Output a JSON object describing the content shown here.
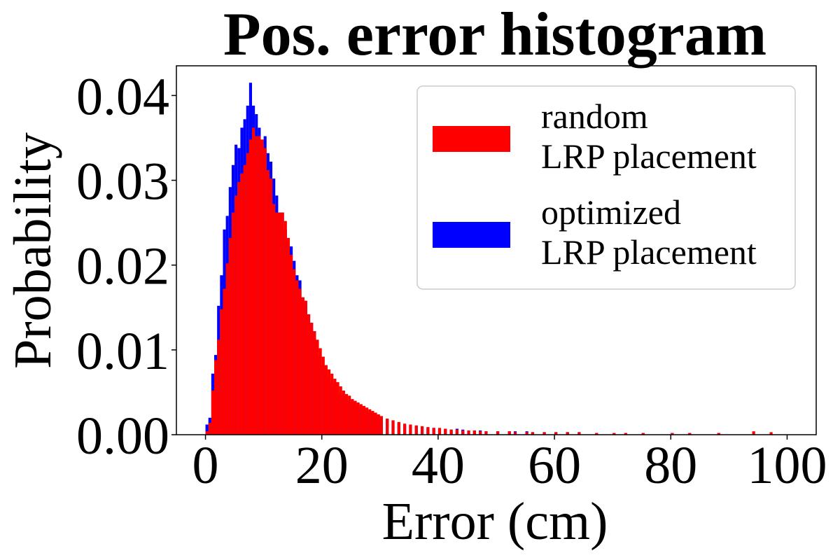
{
  "chart_data": {
    "type": "bar",
    "title": "Pos. error histogram",
    "xlabel": "Error (cm)",
    "ylabel": "Probability",
    "xlim": [
      -5,
      105
    ],
    "ylim": [
      0,
      0.0435
    ],
    "x_ticks": [
      0,
      20,
      40,
      60,
      80,
      100
    ],
    "x_tick_labels": [
      "0",
      "20",
      "40",
      "60",
      "80",
      "100"
    ],
    "y_ticks": [
      0,
      0.01,
      0.02,
      0.03,
      0.04
    ],
    "y_tick_labels": [
      "0.00",
      "0.01",
      "0.02",
      "0.03",
      "0.04"
    ],
    "bin_width": 0.5,
    "grid": false,
    "legend_position": "upper right",
    "series": [
      {
        "name": "optimized\nLRP placement",
        "color": "#0000ff",
        "x": [
          0.0,
          0.5,
          1.0,
          1.5,
          2.0,
          2.5,
          3.0,
          3.5,
          4.0,
          4.5,
          5.0,
          5.5,
          6.0,
          6.5,
          7.0,
          7.5,
          8.0,
          8.5,
          9.0,
          9.5,
          10.0,
          10.5,
          11.0,
          11.5,
          12.0,
          12.5,
          13.0,
          13.5,
          14.0,
          14.5,
          15.0,
          15.5,
          16.0,
          16.5,
          17.0,
          17.5,
          18.0,
          18.5,
          19.0,
          19.5,
          20.0,
          20.5,
          21.0,
          21.5,
          22.0,
          22.5,
          23.0,
          23.5,
          24.0,
          24.5,
          25.0,
          25.5,
          26.0,
          26.5,
          27.0,
          27.5,
          28.0,
          28.5,
          29.0,
          29.5,
          30.0,
          31.0,
          32.0,
          33.0,
          34.0,
          35.0,
          36.0,
          37.0,
          38.0,
          39.0,
          40.0,
          41.0,
          42.0,
          43.0,
          44.0,
          45.0,
          46.0,
          47.0,
          48.0,
          50.0,
          52.0,
          53.0,
          55.0,
          56.0,
          58.0,
          60.0,
          62.0,
          64.0,
          67.0,
          70.0,
          72.0,
          75.0,
          80.0,
          83.0,
          88.0
        ],
        "values": [
          0.0012,
          0.002,
          0.0072,
          0.0094,
          0.0152,
          0.0188,
          0.0242,
          0.0258,
          0.0292,
          0.0318,
          0.0342,
          0.0338,
          0.0362,
          0.0372,
          0.0388,
          0.0415,
          0.0388,
          0.0378,
          0.0362,
          0.0348,
          0.0352,
          0.0332,
          0.0322,
          0.0302,
          0.0282,
          0.0262,
          0.0262,
          0.0242,
          0.0232,
          0.0222,
          0.0205,
          0.0188,
          0.0182,
          0.0162,
          0.0152,
          0.0142,
          0.0132,
          0.0122,
          0.0102,
          0.0092,
          0.0082,
          0.0072,
          0.0066,
          0.0062,
          0.0058,
          0.0052,
          0.0048,
          0.0046,
          0.0042,
          0.004,
          0.0038,
          0.0036,
          0.0034,
          0.0032,
          0.003,
          0.0028,
          0.0027,
          0.0026,
          0.0024,
          0.0022,
          0.002,
          0.0018,
          0.0016,
          0.0014,
          0.0012,
          0.0011,
          0.001,
          0.0009,
          0.0008,
          0.0008,
          0.0007,
          0.0007,
          0.0006,
          0.0007,
          0.0006,
          0.0005,
          0.0005,
          0.0005,
          0.0004,
          0.0004,
          0.0004,
          0.0004,
          0.0004,
          0.0003,
          0.0003,
          0.0003,
          0.0003,
          0.0003,
          0.0002,
          0.0002,
          0.0002,
          0.0002,
          0.0002,
          0.0002,
          0.0002
        ]
      },
      {
        "name": "random\nLRP placement",
        "color": "#ff0000",
        "x": [
          0.0,
          0.5,
          1.0,
          1.5,
          2.0,
          2.5,
          3.0,
          3.5,
          4.0,
          4.5,
          5.0,
          5.5,
          6.0,
          6.5,
          7.0,
          7.5,
          8.0,
          8.5,
          9.0,
          9.5,
          10.0,
          10.5,
          11.0,
          11.5,
          12.0,
          12.5,
          13.0,
          13.5,
          14.0,
          14.5,
          15.0,
          15.5,
          16.0,
          16.5,
          17.0,
          17.5,
          18.0,
          18.5,
          19.0,
          19.5,
          20.0,
          20.5,
          21.0,
          21.5,
          22.0,
          22.5,
          23.0,
          23.5,
          24.0,
          24.5,
          25.0,
          25.5,
          26.0,
          26.5,
          27.0,
          27.5,
          28.0,
          28.5,
          29.0,
          29.5,
          30.0,
          31.0,
          32.0,
          33.0,
          34.0,
          35.0,
          36.0,
          37.0,
          38.0,
          39.0,
          40.0,
          41.0,
          42.0,
          43.0,
          44.0,
          45.0,
          46.0,
          47.0,
          48.0,
          50.0,
          52.0,
          53.0,
          55.0,
          56.0,
          58.0,
          60.0,
          62.0,
          64.0,
          67.0,
          70.0,
          72.0,
          75.0,
          80.0,
          83.0,
          88.0,
          94.0,
          97.0
        ],
        "values": [
          0.0004,
          0.0014,
          0.0052,
          0.0088,
          0.0112,
          0.0148,
          0.0172,
          0.0202,
          0.0232,
          0.0262,
          0.0282,
          0.0298,
          0.0308,
          0.0318,
          0.0332,
          0.0348,
          0.0362,
          0.0352,
          0.0352,
          0.0348,
          0.0338,
          0.0312,
          0.0302,
          0.0272,
          0.0262,
          0.0262,
          0.0262,
          0.0252,
          0.0232,
          0.0212,
          0.0195,
          0.0182,
          0.0172,
          0.0162,
          0.0158,
          0.0142,
          0.0132,
          0.0122,
          0.0112,
          0.0102,
          0.0092,
          0.0082,
          0.0077,
          0.0072,
          0.0066,
          0.0062,
          0.0057,
          0.0052,
          0.0048,
          0.0046,
          0.0042,
          0.004,
          0.0038,
          0.0036,
          0.0034,
          0.0032,
          0.003,
          0.0028,
          0.0026,
          0.0024,
          0.0022,
          0.0019,
          0.0017,
          0.0015,
          0.0013,
          0.0012,
          0.0011,
          0.001,
          0.0009,
          0.0008,
          0.0008,
          0.0007,
          0.0006,
          0.0006,
          0.0005,
          0.0005,
          0.0005,
          0.0004,
          0.0004,
          0.0004,
          0.0004,
          0.0003,
          0.0003,
          0.0003,
          0.0003,
          0.0003,
          0.0003,
          0.0003,
          0.0002,
          0.0002,
          0.0002,
          0.0002,
          0.0002,
          0.0002,
          0.0002,
          0.0004,
          0.0003
        ]
      }
    ]
  }
}
